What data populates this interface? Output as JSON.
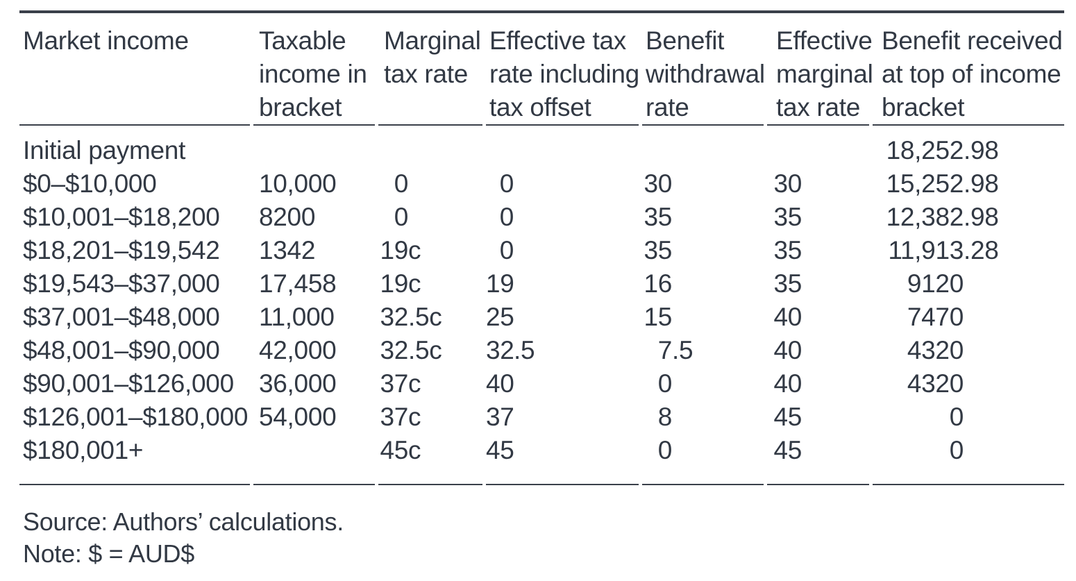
{
  "table": {
    "columns": [
      {
        "key": "market-income",
        "label": "Market income",
        "align": "left"
      },
      {
        "key": "taxable-income",
        "label": "Taxable\nincome in\nbracket",
        "align": "left"
      },
      {
        "key": "marginal-tax-rate",
        "label": "Marginal\ntax rate",
        "align": "decimal"
      },
      {
        "key": "effective-tax-rate",
        "label": "Effective tax\nrate including\ntax offset",
        "align": "decimal"
      },
      {
        "key": "benefit-withdrawal",
        "label": "Benefit\nwithdrawal\nrate",
        "align": "decimal"
      },
      {
        "key": "effective-marginal",
        "label": "Effective\nmarginal\ntax rate",
        "align": "decimal"
      },
      {
        "key": "benefit-received",
        "label": "Benefit received\nat top of income\nbracket",
        "align": "decimal"
      }
    ],
    "rows": [
      [
        "Initial payment",
        "",
        "",
        "",
        "",
        "",
        "18,252.98"
      ],
      [
        "$0–$10,000",
        "10,000",
        "0",
        "0",
        "30",
        "30",
        "15,252.98"
      ],
      [
        "$10,001–$18,200",
        "8200",
        "0",
        "0",
        "35",
        "35",
        "12,382.98"
      ],
      [
        "$18,201–$19,542",
        "1342",
        "19c",
        "0",
        "35",
        "35",
        "11,913.28"
      ],
      [
        "$19,543–$37,000",
        "17,458",
        "19c",
        "19",
        "16",
        "35",
        "9120"
      ],
      [
        "$37,001–$48,000",
        "11,000",
        "32.5c",
        "25",
        "15",
        "40",
        "7470"
      ],
      [
        "$48,001–$90,000",
        "42,000",
        "32.5c",
        "32.5",
        "7.5",
        "40",
        "4320"
      ],
      [
        "$90,001–$126,000",
        "36,000",
        "37c",
        "40",
        "0",
        "40",
        "4320"
      ],
      [
        "$126,001–$180,000",
        "54,000",
        "37c",
        "37",
        "8",
        "45",
        "0"
      ],
      [
        "$180,001+",
        "",
        "45c",
        "45",
        "0",
        "45",
        "0"
      ]
    ]
  },
  "footer": {
    "source": "Source: Authors’ calculations.",
    "note": "Note: $ = AUD$"
  },
  "colors": {
    "text": "#323944",
    "rule": "#3a404a",
    "background": "#ffffff"
  }
}
